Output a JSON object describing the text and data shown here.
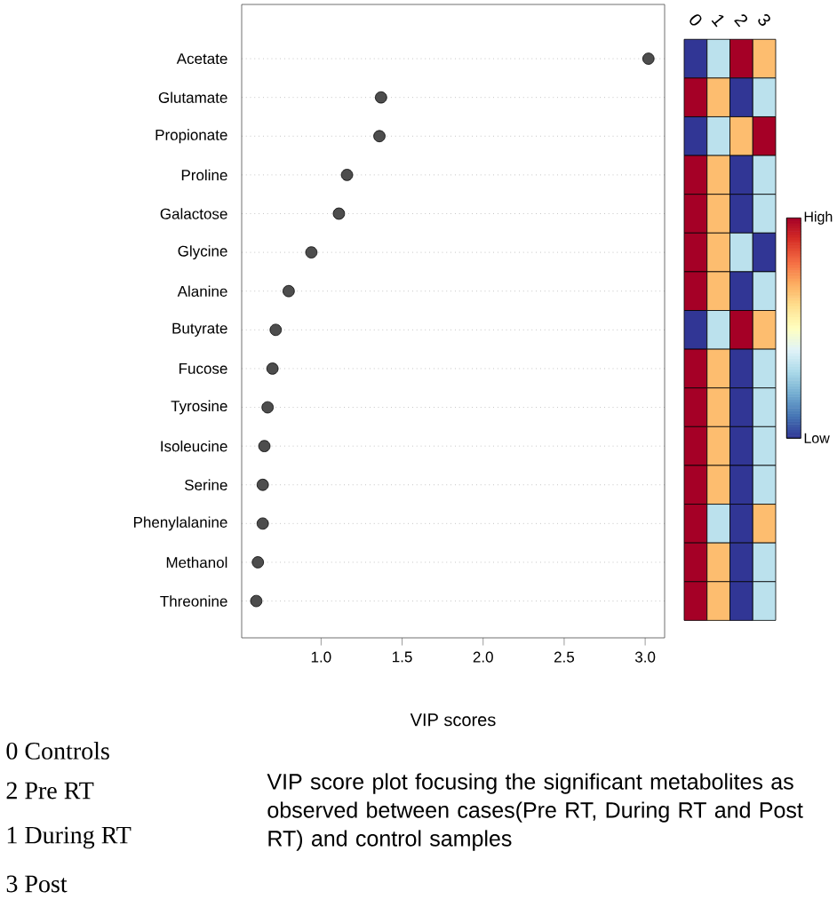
{
  "chart_data": [
    {
      "type": "scatter",
      "orientation": "horizontal",
      "xlabel": "VIP scores",
      "categories": [
        "Acetate",
        "Glutamate",
        "Propionate",
        "Proline",
        "Galactose",
        "Glycine",
        "Alanine",
        "Butyrate",
        "Fucose",
        "Tyrosine",
        "Isoleucine",
        "Serine",
        "Phenylalanine",
        "Methanol",
        "Threonine"
      ],
      "values": [
        3.02,
        1.37,
        1.36,
        1.16,
        1.11,
        0.94,
        0.8,
        0.72,
        0.7,
        0.67,
        0.65,
        0.64,
        0.64,
        0.61,
        0.6
      ],
      "color": "#4d4d4d",
      "marker": "circle",
      "grid": "y",
      "xlim": [
        0.51,
        3.12
      ],
      "xticks": [
        {
          "value": 1,
          "label": "1.0"
        },
        1.5,
        {
          "value": 2,
          "label": "2.0"
        },
        2.5,
        {
          "value": 3,
          "label": "3.0"
        }
      ],
      "annotations": [
        "0  Controls",
        "2  Pre RT",
        "1   During RT",
        "3   Post",
        "VIP score plot focusing the significant metabolites as observed between cases(Pre RT, During RT and Post RT)  and  control samples"
      ]
    },
    {
      "type": "heatmap",
      "categories": [
        "0",
        "1",
        "2",
        "3"
      ],
      "y_categories": [
        null,
        null,
        null,
        null,
        null,
        null,
        null,
        null,
        null,
        null,
        null,
        null,
        null,
        null,
        null
      ],
      "tick_labels": "x",
      "cells": [
        [
          0,
          0.33,
          1,
          0.67
        ],
        [
          1,
          0.67,
          0,
          0.33
        ],
        [
          0,
          0.33,
          0.67,
          1
        ],
        [
          1,
          0.67,
          0,
          0.33
        ],
        [
          1,
          0.67,
          0,
          0.33
        ],
        [
          1,
          0.67,
          0.33,
          0
        ],
        [
          1,
          0.67,
          0,
          0.33
        ],
        [
          0,
          0.33,
          1,
          0.67
        ],
        [
          1,
          0.67,
          0,
          0.33
        ],
        [
          1,
          0.67,
          0,
          0.33
        ],
        [
          1,
          0.67,
          0,
          0.33
        ],
        [
          1,
          0.67,
          0,
          0.33
        ],
        [
          1,
          0.33,
          0,
          0.67
        ],
        [
          1,
          0.67,
          0,
          0.33
        ],
        [
          1,
          0.67,
          0,
          0.33
        ]
      ],
      "clim": [
        0,
        1
      ],
      "cticks": [
        {
          "value": 0,
          "label": "Low"
        },
        {
          "value": 1,
          "label": "High"
        }
      ]
    }
  ]
}
